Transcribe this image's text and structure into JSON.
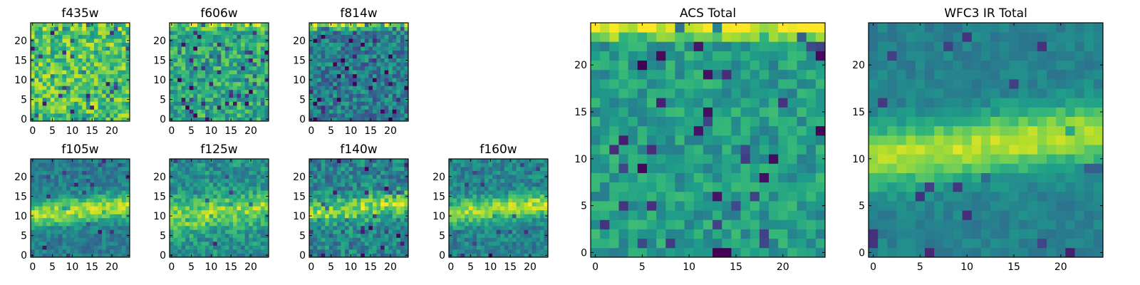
{
  "figure": {
    "colormap": "viridis",
    "colormap_stops": [
      "#440154",
      "#482878",
      "#3e4989",
      "#31688e",
      "#26828e",
      "#1f9e89",
      "#35b779",
      "#6ece58",
      "#b5de2b",
      "#fde725"
    ]
  },
  "chart_data": [
    {
      "type": "heatmap",
      "id": "f435w",
      "title": "f435w",
      "grid_size": [
        25,
        25
      ],
      "value_range": [
        0,
        1
      ],
      "xlim": [
        0,
        24
      ],
      "ylim": [
        0,
        24
      ],
      "xticks": [
        "0",
        "5",
        "10",
        "15",
        "20"
      ],
      "yticks": [
        "0",
        "5",
        "10",
        "15",
        "20"
      ],
      "pattern": "noise",
      "base_level": 0.72,
      "noise_level": 0.22,
      "seed": 11,
      "top_row_boost": 0.08,
      "band_center": 12,
      "band_strength": 0,
      "band_width": 3,
      "band_tilt": 0
    },
    {
      "type": "heatmap",
      "id": "f606w",
      "title": "f606w",
      "grid_size": [
        25,
        25
      ],
      "value_range": [
        0,
        1
      ],
      "xlim": [
        0,
        24
      ],
      "ylim": [
        0,
        24
      ],
      "xticks": [
        "0",
        "5",
        "10",
        "15",
        "20"
      ],
      "yticks": [
        "0",
        "5",
        "10",
        "15",
        "20"
      ],
      "pattern": "noise",
      "base_level": 0.6,
      "noise_level": 0.2,
      "seed": 23,
      "top_row_boost": 0.25,
      "band_center": 12,
      "band_strength": 0,
      "band_width": 3,
      "band_tilt": 0
    },
    {
      "type": "heatmap",
      "id": "f814w",
      "title": "f814w",
      "grid_size": [
        25,
        25
      ],
      "value_range": [
        0,
        1
      ],
      "xlim": [
        0,
        24
      ],
      "ylim": [
        0,
        24
      ],
      "xticks": [
        "0",
        "5",
        "10",
        "15",
        "20"
      ],
      "yticks": [
        "0",
        "5",
        "10",
        "15",
        "20"
      ],
      "pattern": "noise",
      "base_level": 0.42,
      "noise_level": 0.2,
      "seed": 37,
      "top_row_boost": 0.45,
      "band_center": 12,
      "band_strength": 0,
      "band_width": 3,
      "band_tilt": 0
    },
    {
      "type": "heatmap",
      "id": "f105w",
      "title": "f105w",
      "grid_size": [
        25,
        25
      ],
      "value_range": [
        0,
        1
      ],
      "xlim": [
        0,
        24
      ],
      "ylim": [
        0,
        24
      ],
      "xticks": [
        "0",
        "5",
        "10",
        "15",
        "20"
      ],
      "yticks": [
        "0",
        "5",
        "10",
        "15",
        "20"
      ],
      "pattern": "band",
      "base_level": 0.42,
      "noise_level": 0.12,
      "seed": 41,
      "top_row_boost": 0,
      "band_center": 11.5,
      "band_strength": 0.45,
      "band_width": 3.2,
      "band_tilt": 0.1
    },
    {
      "type": "heatmap",
      "id": "f125w",
      "title": "f125w",
      "grid_size": [
        25,
        25
      ],
      "value_range": [
        0,
        1
      ],
      "xlim": [
        0,
        24
      ],
      "ylim": [
        0,
        24
      ],
      "xticks": [
        "0",
        "5",
        "10",
        "15",
        "20"
      ],
      "yticks": [
        "0",
        "5",
        "10",
        "15",
        "20"
      ],
      "pattern": "band",
      "base_level": 0.5,
      "noise_level": 0.16,
      "seed": 53,
      "top_row_boost": 0,
      "band_center": 11,
      "band_strength": 0.32,
      "band_width": 4,
      "band_tilt": 0.1
    },
    {
      "type": "heatmap",
      "id": "f140w",
      "title": "f140w",
      "grid_size": [
        25,
        25
      ],
      "value_range": [
        0,
        1
      ],
      "xlim": [
        0,
        24
      ],
      "ylim": [
        0,
        24
      ],
      "xticks": [
        "0",
        "5",
        "10",
        "15",
        "20"
      ],
      "yticks": [
        "0",
        "5",
        "10",
        "15",
        "20"
      ],
      "pattern": "band",
      "base_level": 0.45,
      "noise_level": 0.18,
      "seed": 67,
      "top_row_boost": 0,
      "band_center": 12,
      "band_strength": 0.38,
      "band_width": 3,
      "band_tilt": 0.12
    },
    {
      "type": "heatmap",
      "id": "f160w",
      "title": "f160w",
      "grid_size": [
        25,
        25
      ],
      "value_range": [
        0,
        1
      ],
      "xlim": [
        0,
        24
      ],
      "ylim": [
        0,
        24
      ],
      "xticks": [
        "0",
        "5",
        "10",
        "15",
        "20"
      ],
      "yticks": [
        "0",
        "5",
        "10",
        "15",
        "20"
      ],
      "pattern": "band",
      "base_level": 0.45,
      "noise_level": 0.14,
      "seed": 79,
      "top_row_boost": 0,
      "band_center": 12,
      "band_strength": 0.42,
      "band_width": 3,
      "band_tilt": 0.1
    },
    {
      "type": "heatmap",
      "id": "acs_total",
      "title": "ACS Total",
      "grid_size": [
        25,
        25
      ],
      "value_range": [
        0,
        1
      ],
      "xlim": [
        0,
        24
      ],
      "ylim": [
        0,
        24
      ],
      "xticks": [
        "0",
        "5",
        "10",
        "15",
        "20"
      ],
      "yticks": [
        "0",
        "5",
        "10",
        "15",
        "20"
      ],
      "pattern": "noise",
      "base_level": 0.55,
      "noise_level": 0.14,
      "seed": 97,
      "top_row_boost": 0.42,
      "band_center": 12,
      "band_strength": 0,
      "band_width": 3,
      "band_tilt": 0
    },
    {
      "type": "heatmap",
      "id": "wfc3_ir_total",
      "title": "WFC3 IR Total",
      "grid_size": [
        25,
        25
      ],
      "value_range": [
        0,
        1
      ],
      "xlim": [
        0,
        24
      ],
      "ylim": [
        0,
        24
      ],
      "xticks": [
        "0",
        "5",
        "10",
        "15",
        "20"
      ],
      "yticks": [
        "0",
        "5",
        "10",
        "15",
        "20"
      ],
      "pattern": "band",
      "base_level": 0.44,
      "noise_level": 0.07,
      "seed": 101,
      "top_row_boost": 0,
      "band_center": 11.5,
      "band_strength": 0.45,
      "band_width": 3.2,
      "band_tilt": 0.12
    }
  ]
}
